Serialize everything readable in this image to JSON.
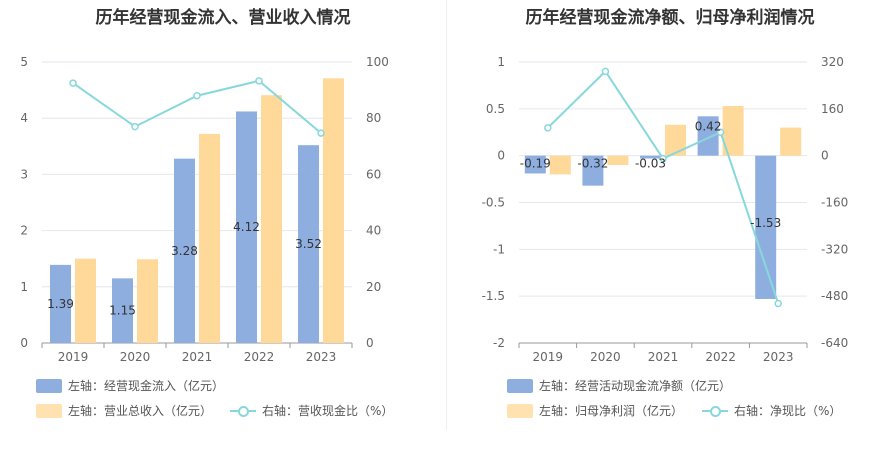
{
  "colors": {
    "bar_primary": "#8eaee0",
    "bar_secondary": "#ffd99a",
    "line": "#88d8db",
    "grid": "#e6e6ee",
    "axis": "#999999"
  },
  "chart_data": [
    {
      "type": "bar",
      "title": "历年经营现金流入、营业收入情况",
      "categories": [
        "2019",
        "2020",
        "2021",
        "2022",
        "2023"
      ],
      "y_left": {
        "min": 0,
        "max": 5,
        "ticks": [
          "0",
          "1",
          "2",
          "3",
          "4",
          "5"
        ]
      },
      "y_right": {
        "min": 0,
        "max": 100,
        "ticks": [
          "0",
          "20",
          "40",
          "60",
          "80",
          "100"
        ]
      },
      "series": [
        {
          "name": "左轴：经营现金流入（亿元）",
          "axis": "left",
          "kind": "bar",
          "values": [
            1.39,
            1.15,
            3.28,
            4.12,
            3.52
          ],
          "labels": [
            "1.39",
            "1.15",
            "3.28",
            "4.12",
            "3.52"
          ]
        },
        {
          "name": "左轴：营业总收入（亿元）",
          "axis": "left",
          "kind": "bar",
          "values": [
            1.5,
            1.49,
            3.72,
            4.41,
            4.71
          ]
        },
        {
          "name": "右轴：营收现金比（%）",
          "axis": "right",
          "kind": "line",
          "values": [
            92.5,
            77.0,
            88.0,
            93.3,
            74.7
          ]
        }
      ]
    },
    {
      "type": "bar",
      "title": "历年经营现金流净额、归母净利润情况",
      "categories": [
        "2019",
        "2020",
        "2021",
        "2022",
        "2023"
      ],
      "y_left": {
        "min": -2,
        "max": 1,
        "ticks": [
          "-2",
          "-1.5",
          "-1",
          "-0.5",
          "0",
          "0.5",
          "1"
        ]
      },
      "y_right": {
        "min": -640,
        "max": 320,
        "ticks": [
          "-640",
          "-480",
          "-320",
          "-160",
          "0",
          "160",
          "320"
        ]
      },
      "series": [
        {
          "name": "左轴：经营活动现金流净额（亿元）",
          "axis": "left",
          "kind": "bar",
          "values": [
            -0.19,
            -0.32,
            -0.03,
            0.42,
            -1.53
          ],
          "labels": [
            "-0.19",
            "-0.32",
            "-0.03",
            "0.42",
            "-1.53"
          ]
        },
        {
          "name": "左轴：归母净利润（亿元）",
          "axis": "left",
          "kind": "bar",
          "values": [
            -0.2,
            -0.1,
            0.33,
            0.53,
            0.3
          ]
        },
        {
          "name": "右轴：净现比（%）",
          "axis": "right",
          "kind": "line",
          "values": [
            95,
            288,
            -10,
            80,
            -505
          ]
        }
      ]
    }
  ]
}
